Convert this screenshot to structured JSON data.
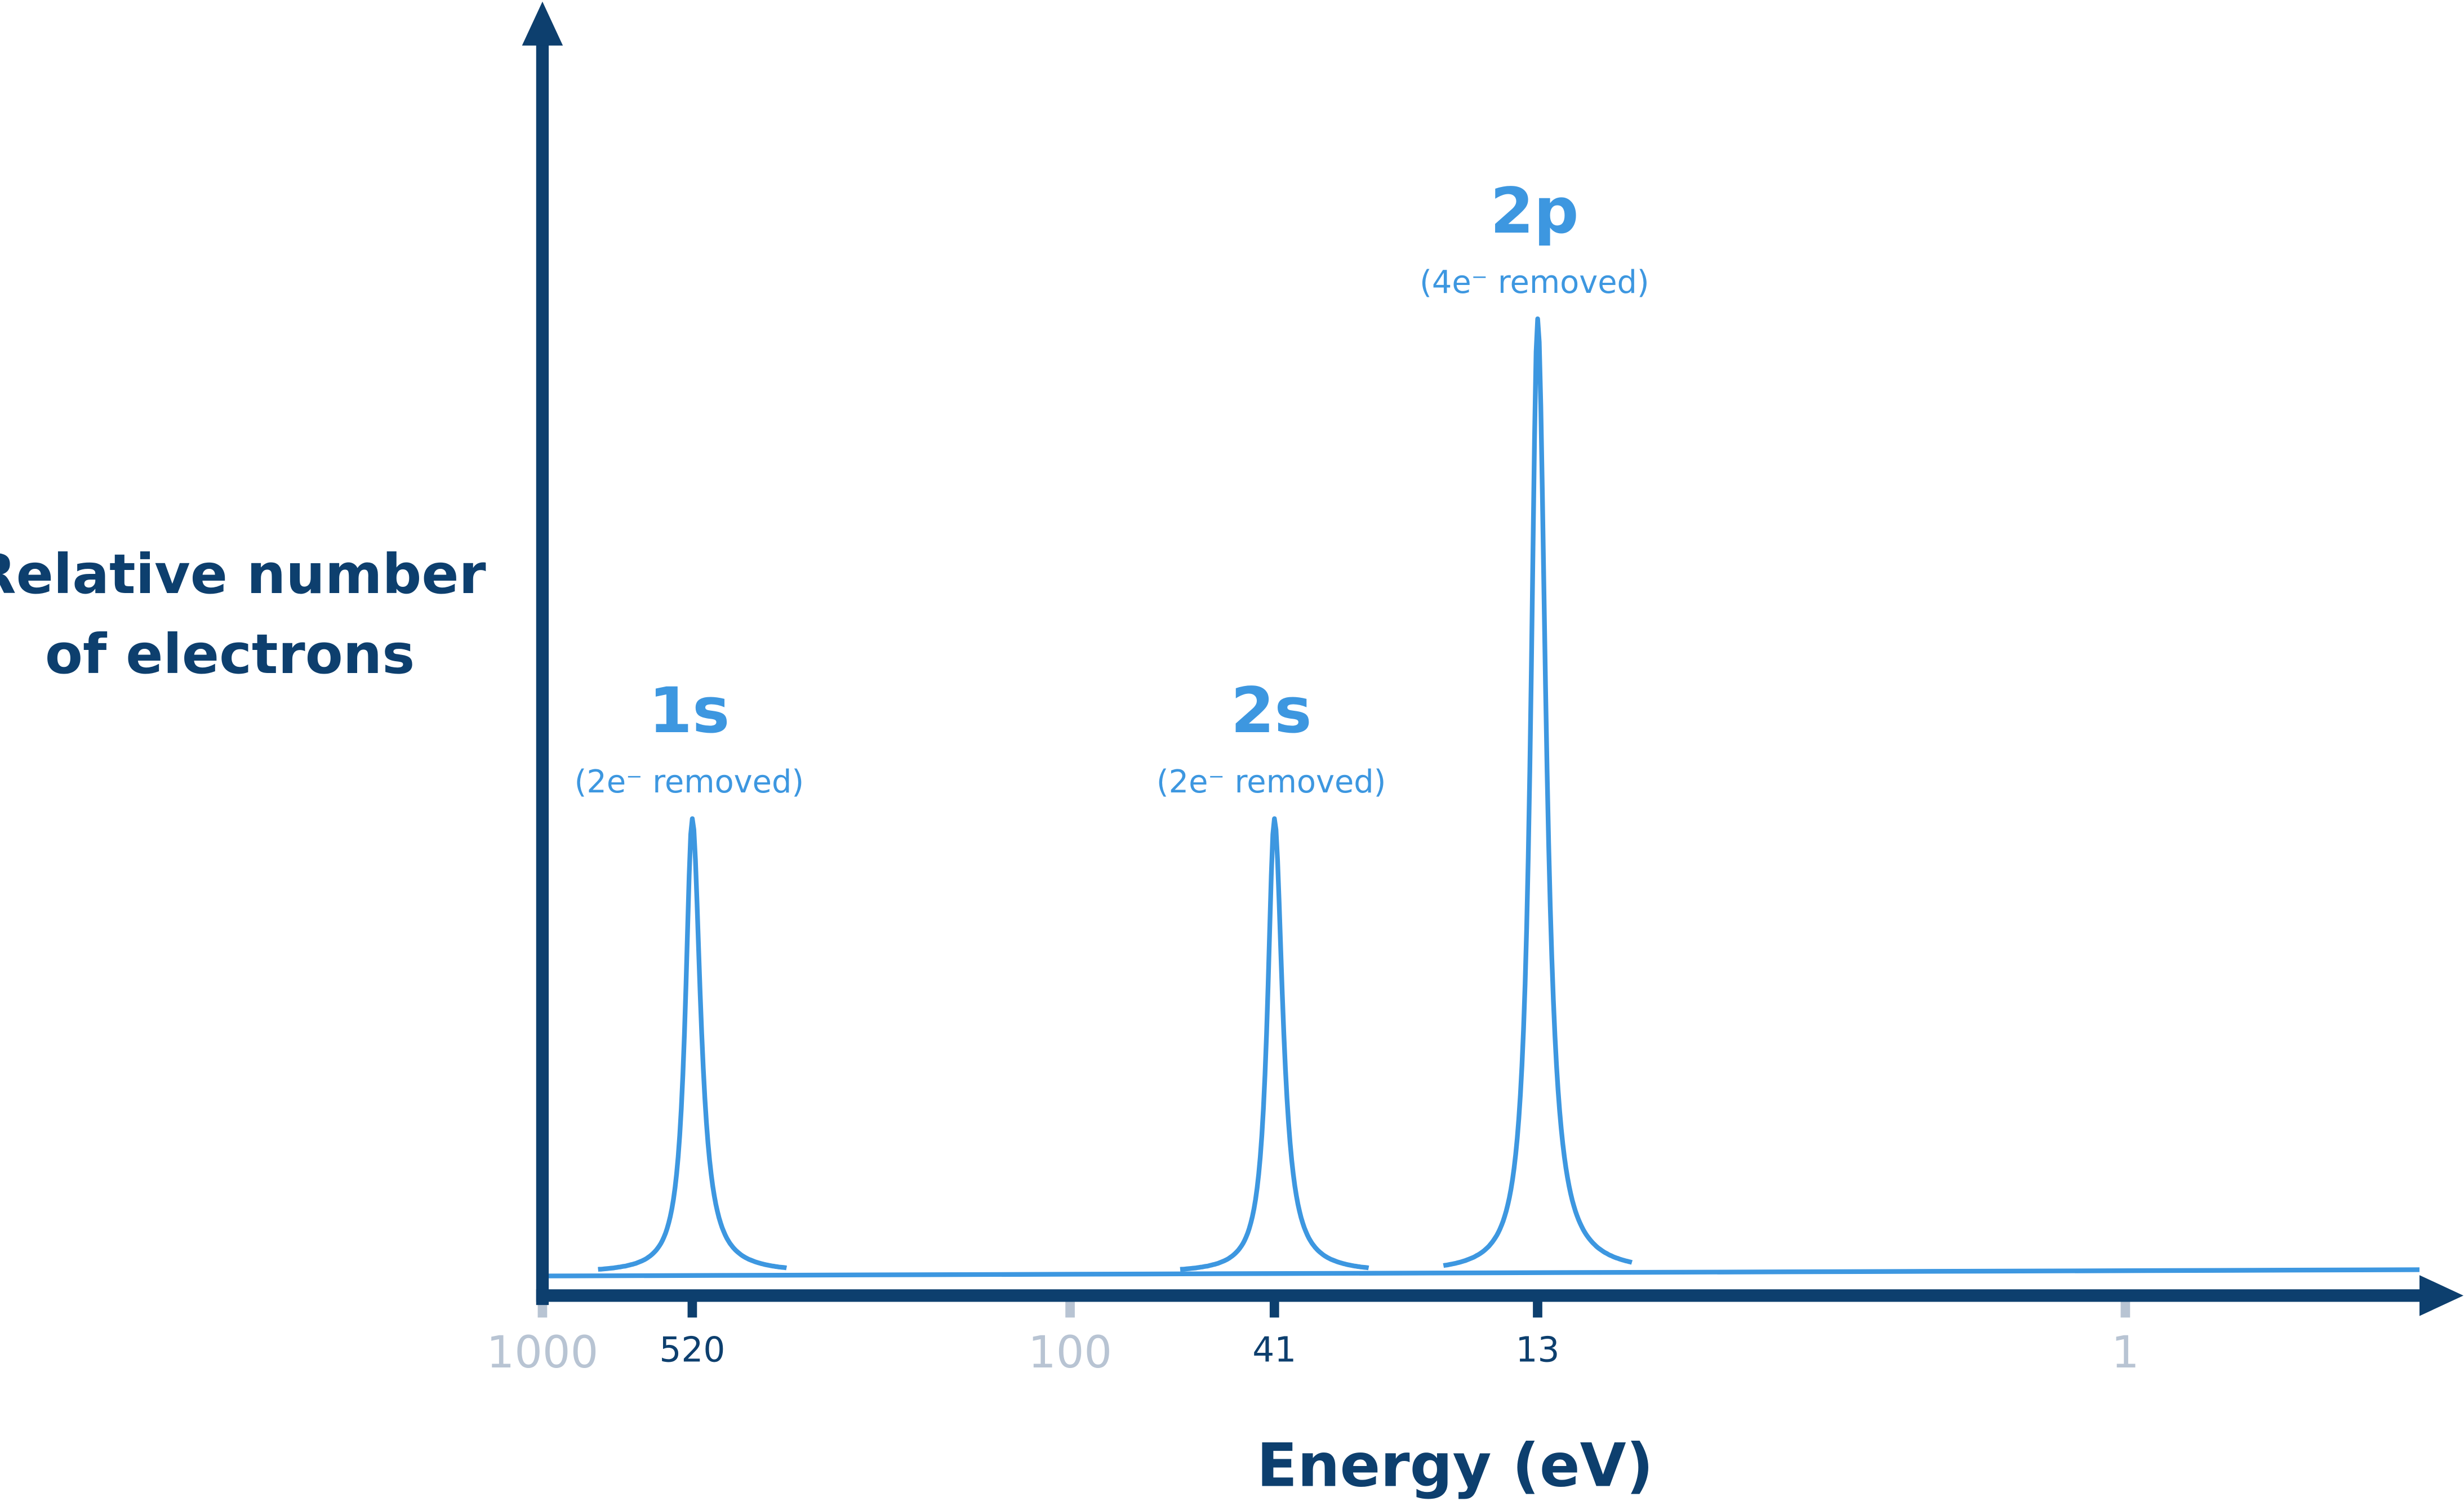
{
  "chart_data": {
    "type": "spectrum",
    "y_label": [
      "Relative number",
      "of electrons"
    ],
    "x_label": "Energy (eV)",
    "log_x": true,
    "reversed_x": true,
    "xlim": [
      1000,
      0.25
    ],
    "ylim": [
      -0.1,
      5.5
    ],
    "xticks": [
      1000,
      100,
      1
    ],
    "axis_color": "#0d3f6e",
    "tick_color": "#b8c4d3",
    "line_color": "#3d97e0",
    "peaks": [
      {
        "label": "1s",
        "note": "(2e⁻ removed)",
        "x": 520,
        "value": 2
      },
      {
        "label": "2s",
        "note": "(2e⁻ removed)",
        "x": 41,
        "value": 2
      },
      {
        "label": "2p",
        "note": "(4e⁻ removed)",
        "x": 13,
        "value": 4.2
      }
    ]
  }
}
